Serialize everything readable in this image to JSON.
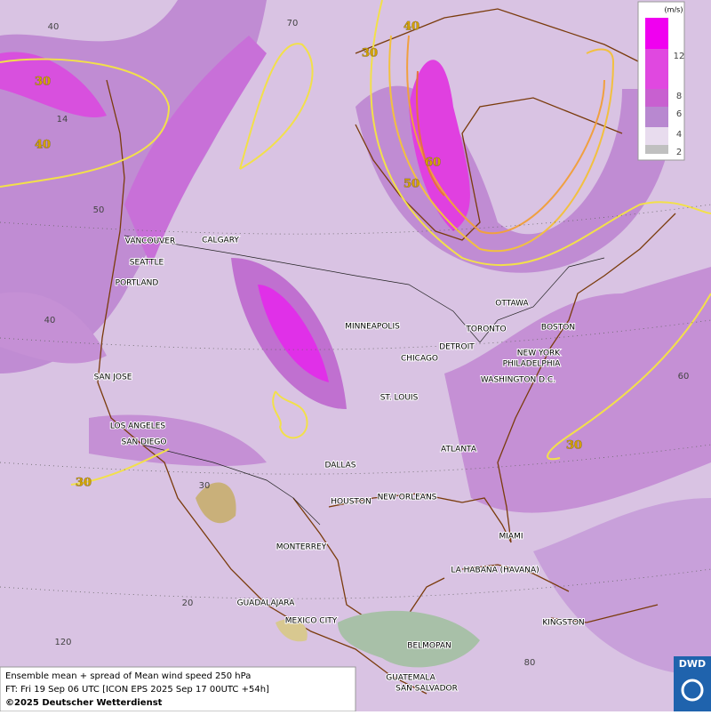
{
  "legend": {
    "unit": "(m/s)",
    "labels": [
      12,
      8,
      6,
      4,
      2
    ]
  },
  "cities": [
    "VANCOUVER",
    "CALGARY",
    "SEATTLE",
    "PORTLAND",
    "SAN JOSE",
    "LOS ANGELES",
    "SAN DIEGO",
    "MINNEAPOLIS",
    "CHICAGO",
    "DETROIT",
    "TORONTO",
    "OTTAWA",
    "BOSTON",
    "NEW YORK",
    "PHILADELPHIA",
    "WASHINGTON D.C.",
    "ST. LOUIS",
    "ATLANTA",
    "DALLAS",
    "HOUSTON",
    "NEW ORLEANS",
    "MIAMI",
    "MONTERREY",
    "LA HABANA (HAVANA)",
    "GUADALAJARA",
    "MEXICO CITY",
    "KINGSTON",
    "BELMOPAN",
    "GUATEMALA",
    "SAN SALVADOR"
  ],
  "contour_labels": [
    "30",
    "30",
    "30",
    "30",
    "40",
    "40",
    "50",
    "60"
  ],
  "grid_labels": [
    "70",
    "40",
    "14",
    "50",
    "40",
    "30",
    "20",
    "120",
    "80",
    "60"
  ],
  "footer": [
    "Ensemble mean + spread of Mean wind speed 250 hPa",
    "FT: Fri 19 Sep 06 UTC [ICON EPS 2025 Sep 17 00UTC +54h]",
    "©2025 Deutscher Wetterdienst"
  ],
  "logo": "DWD"
}
